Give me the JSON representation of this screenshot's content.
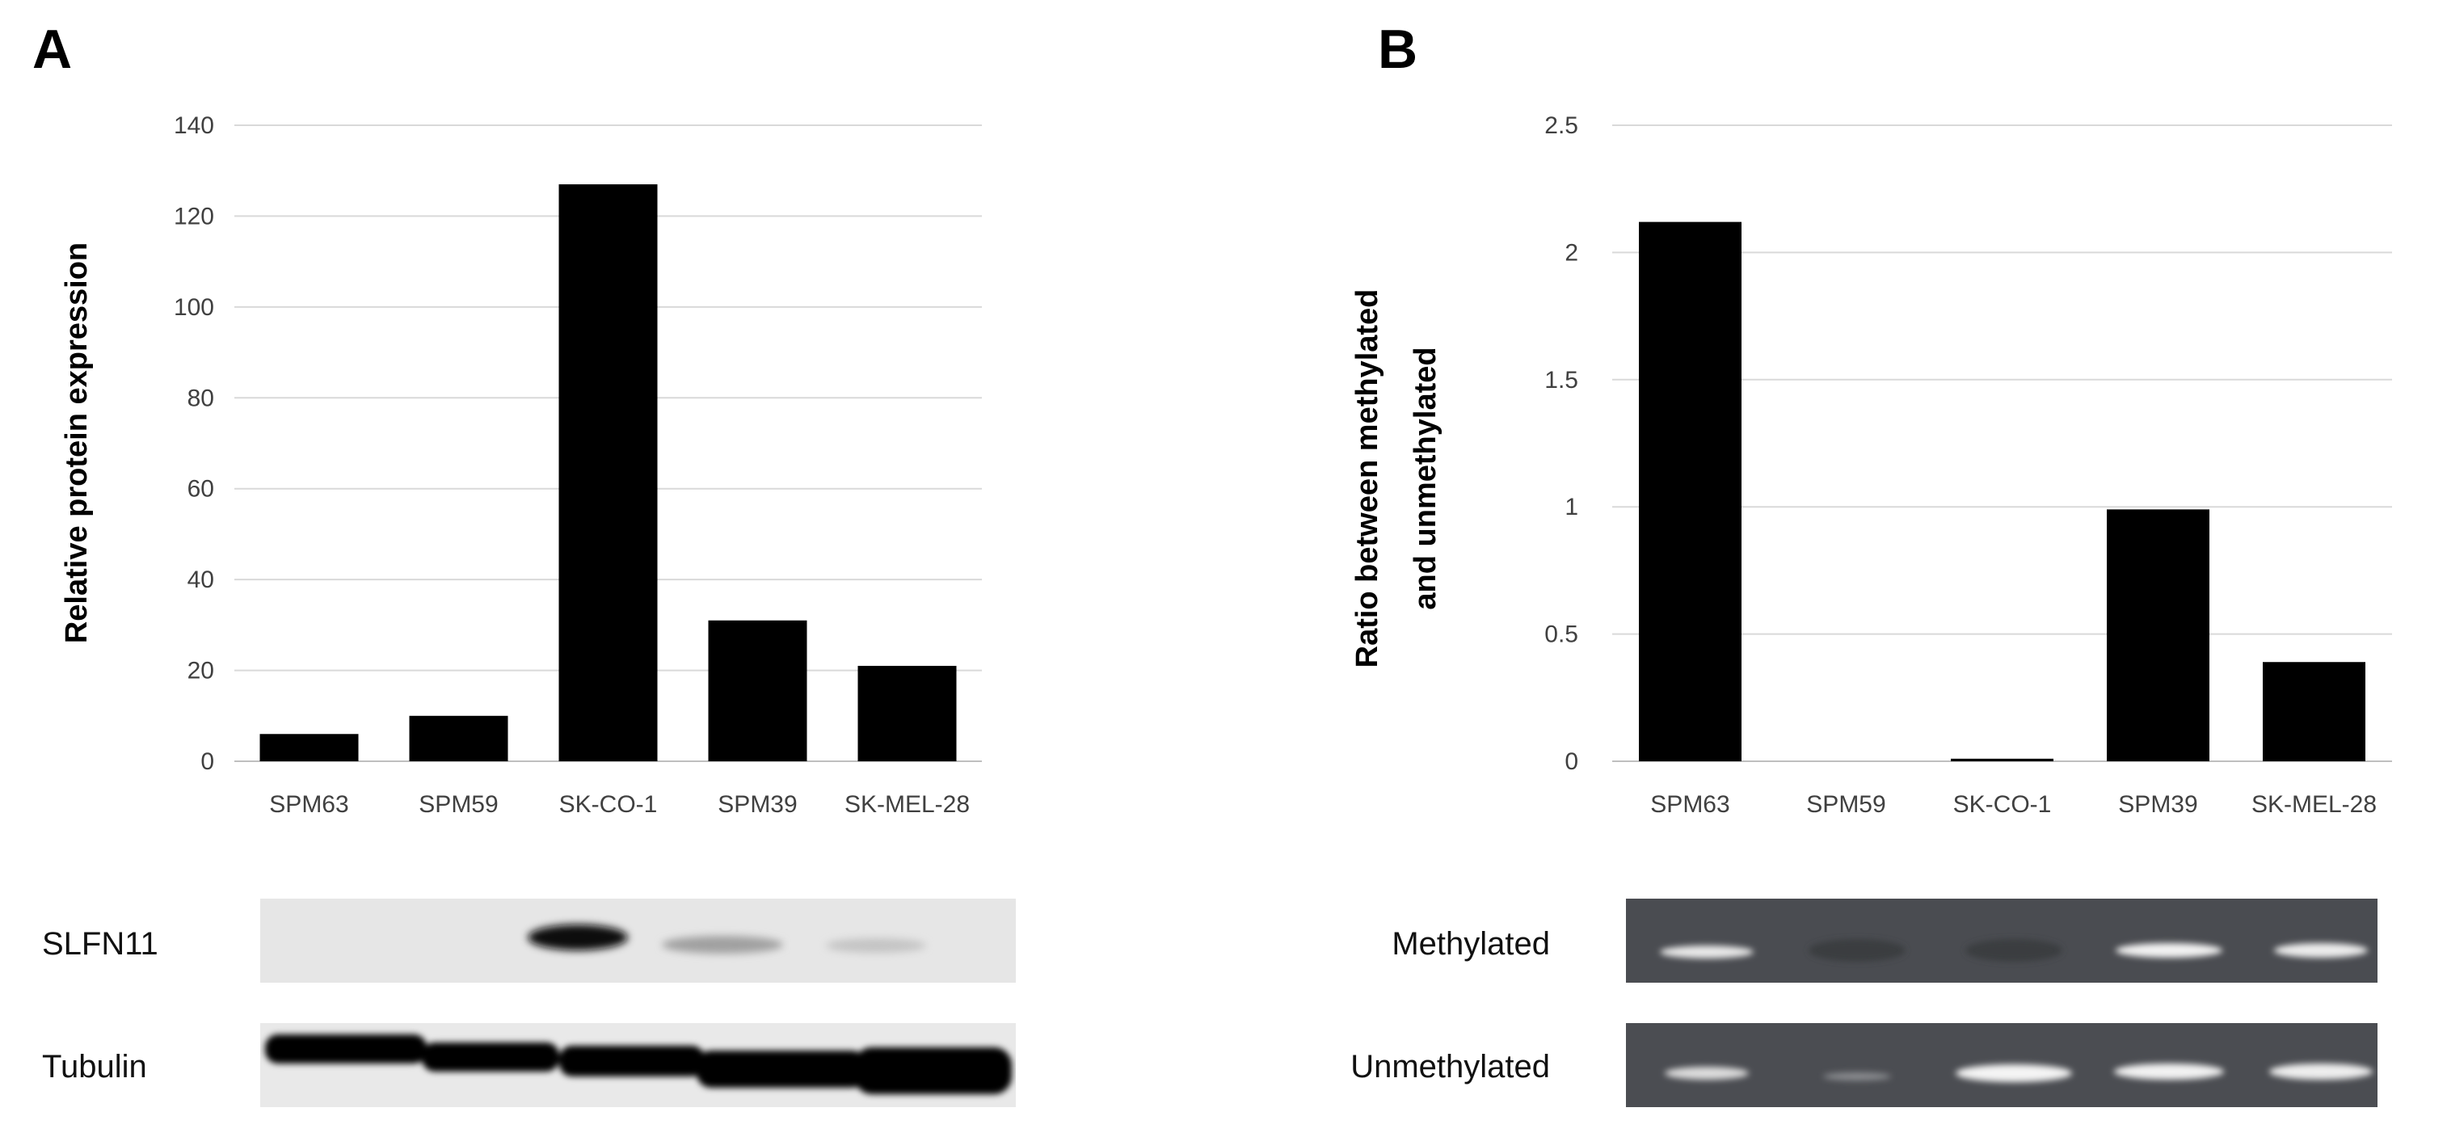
{
  "panels": {
    "a": {
      "letter": "A",
      "blot_rows": [
        "SLFN11",
        "Tubulin"
      ]
    },
    "b": {
      "letter": "B",
      "blot_rows": [
        "Methylated",
        "Unmethylated"
      ]
    }
  },
  "colors": {
    "bar": "#000000",
    "grid": "#d9d9d9",
    "tick_text": "#404040",
    "blot_a_bg": "#e6e6e6",
    "blot_b_bg": "#4a4c51"
  },
  "chart_data": [
    {
      "type": "bar",
      "categories": [
        "SPM63",
        "SPM59",
        "SK-CO-1",
        "SPM39",
        "SK-MEL-28"
      ],
      "values": [
        6,
        10,
        127,
        31,
        21
      ],
      "ylabel": "Relative protein expression",
      "ylim": [
        0,
        140
      ],
      "yticks": [
        "0",
        "20",
        "40",
        "60",
        "80",
        "100",
        "120",
        "140"
      ],
      "grid": true
    },
    {
      "type": "bar",
      "categories": [
        "SPM63",
        "SPM59",
        "SK-CO-1",
        "SPM39",
        "SK-MEL-28"
      ],
      "values": [
        2.12,
        0,
        0.01,
        0.99,
        0.39
      ],
      "ylabel_lines": [
        "Ratio between methylated",
        "and unmethylated"
      ],
      "ylim": [
        0,
        2.5
      ],
      "yticks": [
        "0",
        "0.5",
        "1",
        "1.5",
        "2",
        "2.5"
      ],
      "grid": true
    }
  ]
}
